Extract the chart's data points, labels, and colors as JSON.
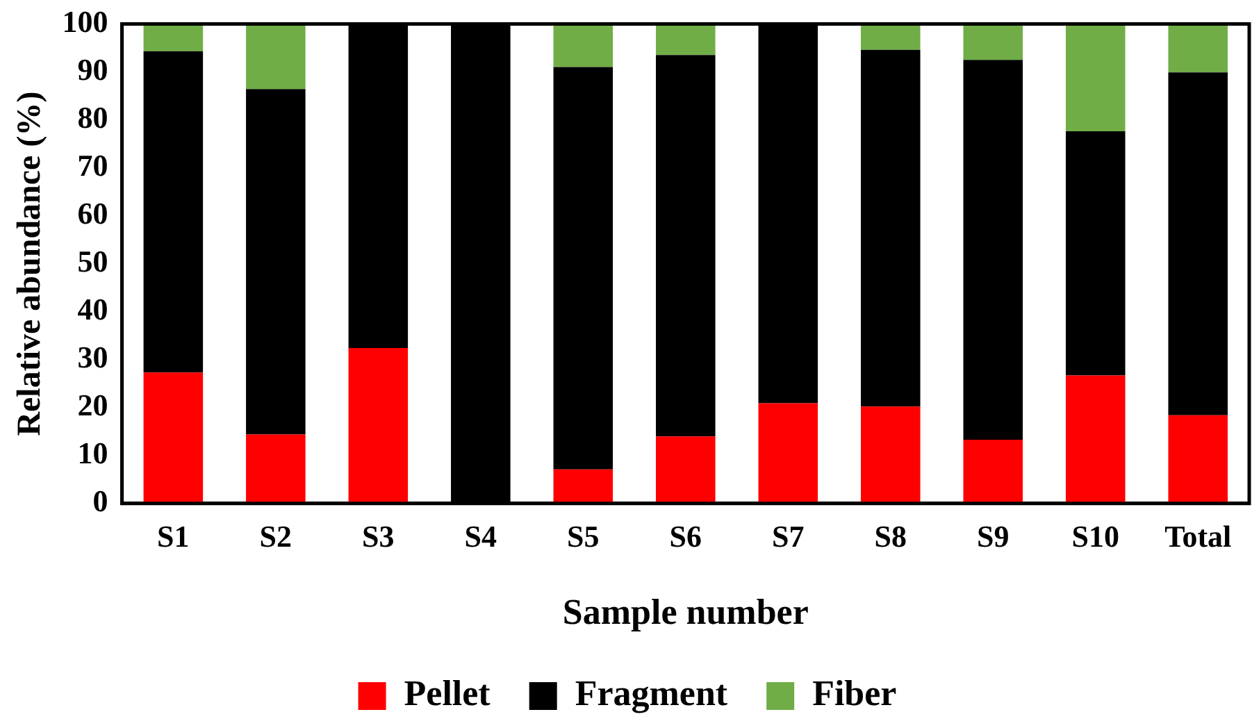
{
  "chart_data": {
    "type": "bar",
    "stacked": true,
    "xlabel": "Sample number",
    "ylabel": "Relative abundance (%)",
    "categories": [
      "S1",
      "S2",
      "S3",
      "S4",
      "S5",
      "S6",
      "S7",
      "S8",
      "S9",
      "S10",
      "Total"
    ],
    "series": [
      {
        "name": "Pellet",
        "color": "#ff0000",
        "values": [
          27.3,
          14.4,
          32.4,
          0,
          7.1,
          14.0,
          20.9,
          20.2,
          13.3,
          26.7,
          18.4
        ]
      },
      {
        "name": "Fragment",
        "color": "#000000",
        "values": [
          67.0,
          72.0,
          67.6,
          100,
          83.9,
          79.5,
          79.1,
          74.4,
          79.2,
          50.9,
          71.5
        ]
      },
      {
        "name": "Fiber",
        "color": "#70ad47",
        "values": [
          5.7,
          13.6,
          0,
          0,
          9.0,
          6.5,
          0,
          5.4,
          7.5,
          22.4,
          10.1
        ]
      }
    ],
    "ylim": [
      0,
      100
    ],
    "yticks": [
      0,
      10,
      20,
      30,
      40,
      50,
      60,
      70,
      80,
      90,
      100
    ],
    "grid": false,
    "legend": "bottom"
  }
}
